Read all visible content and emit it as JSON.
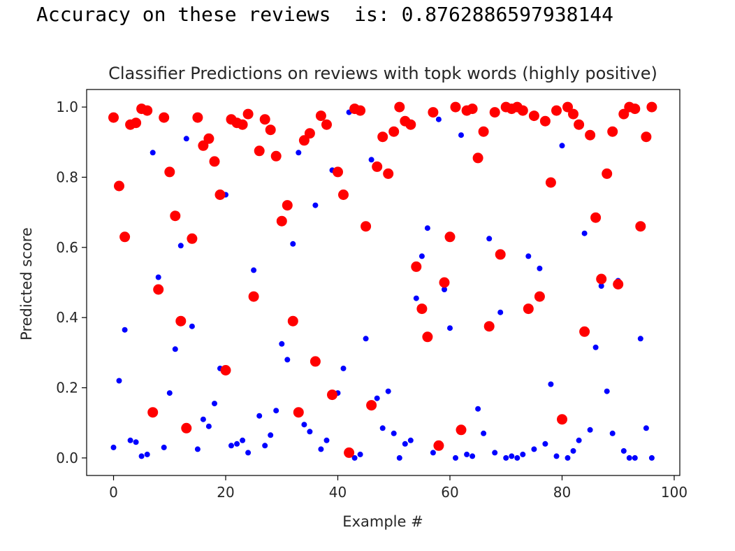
{
  "output": {
    "text": "Accuracy on these reviews  is: 0.8762886597938144"
  },
  "chart_data": {
    "type": "scatter",
    "title": "Classifier Predictions on reviews with topk words (highly positive)",
    "xlabel": "Example #",
    "ylabel": "Predicted score",
    "xlim": [
      -4.8,
      101
    ],
    "ylim": [
      -0.05,
      1.05
    ],
    "xticks": [
      0,
      20,
      40,
      60,
      80,
      100
    ],
    "yticks": [
      0.0,
      0.2,
      0.4,
      0.6,
      0.8,
      1.0
    ],
    "ytick_labels": [
      "0.0",
      "0.2",
      "0.4",
      "0.6",
      "0.8",
      "1.0"
    ],
    "grid": false,
    "legend": "none",
    "series": [
      {
        "color": "#0000ff",
        "marker": "small-dot",
        "x": [
          0,
          1,
          2,
          3,
          4,
          5,
          6,
          7,
          8,
          9,
          10,
          11,
          12,
          13,
          14,
          15,
          16,
          17,
          18,
          19,
          20,
          21,
          22,
          23,
          24,
          25,
          26,
          27,
          28,
          29,
          30,
          31,
          32,
          33,
          34,
          35,
          36,
          37,
          38,
          39,
          40,
          41,
          42,
          43,
          44,
          45,
          46,
          47,
          48,
          49,
          50,
          51,
          52,
          53,
          54,
          55,
          56,
          57,
          58,
          59,
          60,
          61,
          62,
          63,
          64,
          65,
          66,
          67,
          68,
          69,
          70,
          71,
          72,
          73,
          74,
          75,
          76,
          77,
          78,
          79,
          80,
          81,
          82,
          83,
          84,
          85,
          86,
          87,
          88,
          89,
          90,
          91,
          92,
          93,
          94,
          95,
          96
        ],
        "y": [
          0.03,
          0.22,
          0.365,
          0.05,
          0.045,
          0.005,
          0.01,
          0.87,
          0.515,
          0.03,
          0.185,
          0.31,
          0.605,
          0.91,
          0.375,
          0.025,
          0.11,
          0.09,
          0.155,
          0.255,
          0.75,
          0.035,
          0.04,
          0.05,
          0.015,
          0.535,
          0.12,
          0.035,
          0.065,
          0.135,
          0.325,
          0.28,
          0.61,
          0.87,
          0.095,
          0.075,
          0.72,
          0.025,
          0.05,
          0.82,
          0.185,
          0.255,
          0.985,
          0.0,
          0.01,
          0.34,
          0.85,
          0.17,
          0.085,
          0.19,
          0.07,
          0.0,
          0.04,
          0.05,
          0.455,
          0.575,
          0.655,
          0.015,
          0.965,
          0.48,
          0.37,
          0.0,
          0.92,
          0.01,
          0.005,
          0.14,
          0.07,
          0.625,
          0.015,
          0.415,
          0.0,
          0.005,
          0.0,
          0.01,
          0.575,
          0.025,
          0.54,
          0.04,
          0.21,
          0.005,
          0.89,
          0.0,
          0.02,
          0.05,
          0.64,
          0.08,
          0.315,
          0.49,
          0.19,
          0.07,
          0.505,
          0.02,
          0.0,
          0.0,
          0.34,
          0.085,
          0.0
        ]
      },
      {
        "color": "#ff0000",
        "marker": "large-dot",
        "x": [
          0,
          1,
          2,
          3,
          4,
          5,
          6,
          7,
          8,
          9,
          10,
          11,
          12,
          13,
          14,
          15,
          16,
          17,
          18,
          19,
          20,
          21,
          22,
          23,
          24,
          25,
          26,
          27,
          28,
          29,
          30,
          31,
          32,
          33,
          34,
          35,
          36,
          37,
          38,
          39,
          40,
          41,
          42,
          43,
          44,
          45,
          46,
          47,
          48,
          49,
          50,
          51,
          52,
          53,
          54,
          55,
          56,
          57,
          58,
          59,
          60,
          61,
          62,
          63,
          64,
          65,
          66,
          67,
          68,
          69,
          70,
          71,
          72,
          73,
          74,
          75,
          76,
          77,
          78,
          79,
          80,
          81,
          82,
          83,
          84,
          85,
          86,
          87,
          88,
          89,
          90,
          91,
          92,
          93,
          94,
          95,
          96
        ],
        "y": [
          0.97,
          0.775,
          0.63,
          0.95,
          0.955,
          0.995,
          0.99,
          0.13,
          0.48,
          0.97,
          0.815,
          0.69,
          0.39,
          0.085,
          0.625,
          0.97,
          0.89,
          0.91,
          0.845,
          0.75,
          0.25,
          0.965,
          0.955,
          0.95,
          0.98,
          0.46,
          0.875,
          0.965,
          0.935,
          0.86,
          0.675,
          0.72,
          0.39,
          0.13,
          0.905,
          0.925,
          0.275,
          0.975,
          0.95,
          0.18,
          0.815,
          0.75,
          0.015,
          0.995,
          0.99,
          0.66,
          0.15,
          0.83,
          0.915,
          0.81,
          0.93,
          1.0,
          0.96,
          0.95,
          0.545,
          0.425,
          0.345,
          0.985,
          0.035,
          0.5,
          0.63,
          1.0,
          0.08,
          0.99,
          0.995,
          0.855,
          0.93,
          0.375,
          0.985,
          0.58,
          1.0,
          0.995,
          1.0,
          0.99,
          0.425,
          0.975,
          0.46,
          0.96,
          0.785,
          0.99,
          0.11,
          1.0,
          0.98,
          0.95,
          0.36,
          0.92,
          0.685,
          0.51,
          0.81,
          0.93,
          0.495,
          0.98,
          1.0,
          0.995,
          0.66,
          0.915,
          1.0
        ]
      }
    ]
  }
}
